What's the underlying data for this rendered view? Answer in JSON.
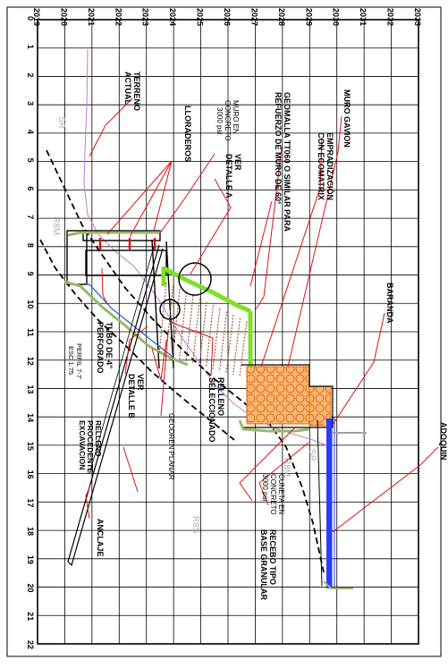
{
  "grid": {
    "elevations": [
      "2019",
      "2020",
      "2021",
      "2022",
      "2023",
      "2024",
      "2025",
      "2026",
      "2027",
      "2028",
      "2029",
      "2030",
      "2031",
      "2032",
      "2033"
    ],
    "stations": [
      "0",
      "1",
      "2",
      "3",
      "4",
      "5",
      "6",
      "7",
      "8",
      "9",
      "10",
      "11",
      "12",
      "13",
      "14",
      "15",
      "16",
      "17",
      "18",
      "19",
      "20",
      "21",
      "22"
    ]
  },
  "labels": {
    "terreno": [
      "TERRENO",
      "ACTUAL"
    ],
    "lloraderos": "LLORADEROS",
    "muro_concreto": [
      "MURO EN",
      "CONCRETO",
      "3000 psi"
    ],
    "ver_detalle_a": [
      "VER",
      "DETALLE A"
    ],
    "geomalla": [
      "GEOMALLA TT060 O SIMILAR PARA",
      "REFUERZO DE MURO DE 60°"
    ],
    "empradizacion": [
      "EMPRADIZACIÓN",
      "CON ECOMATRIX"
    ],
    "muro_gavion": "MURO GAVION",
    "baranda": "BARANDA",
    "adoquin": "ADOQUIN",
    "tubo": [
      "TUBO DE 4\"",
      "PERFORADO"
    ],
    "ver_detalle_b": [
      "VER",
      "DETALLE B"
    ],
    "relleno_procedente": [
      "RELLENO",
      "PROCEDENTE",
      "EXCAVACION"
    ],
    "geodren": "GEODREN PLANAR",
    "relleno_seleccionado": [
      "RELLENO",
      "SELECCIONADO"
    ],
    "cuneta": [
      "CUNETA EN",
      "CONCRETO",
      "3000 psi"
    ],
    "recebo": [
      "RECEBO TIPO",
      "BASE GRANULAR"
    ],
    "anclaje": "ANCLAJE",
    "perfil": [
      "PERFIL 7-7'",
      "ESC 1:75"
    ],
    "layer_sr_1": "SR",
    "layer_sr_2": "SR",
    "layer_rsm_1": "R8M",
    "layer_rsm_2": "R8M",
    "layer_rss": "R8S"
  },
  "colors": {
    "line": "#000000",
    "geomalla": "#7ee02a",
    "gavion_fill": "#f7b77a",
    "gavion_stroke": "#e06a00",
    "terrain": "#c07ad8",
    "adoquin": "#2a3cff",
    "drain_pipe": "#1a5fc8",
    "recebo": "#9ab76a",
    "rebar": "#a0522d",
    "weephole": "#e01010",
    "leader": "#e01010",
    "layer_text": "#b0b0b0"
  }
}
